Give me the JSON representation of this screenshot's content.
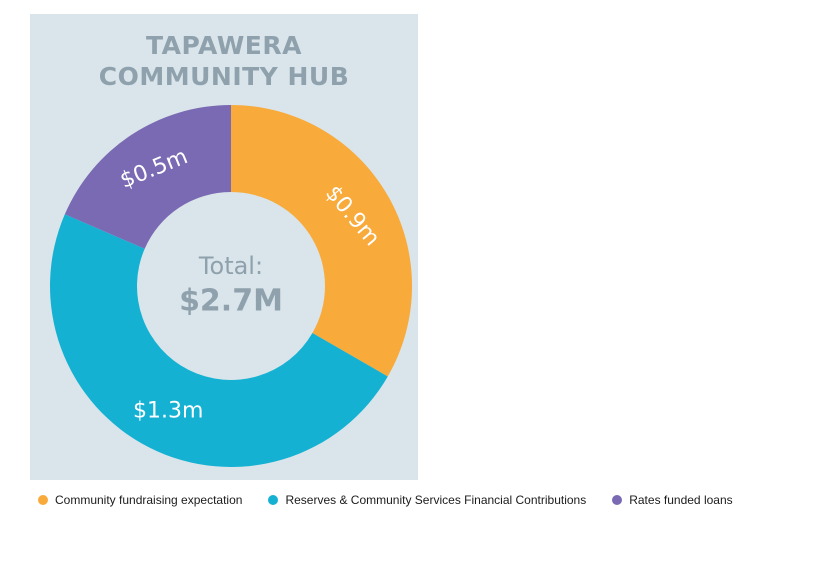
{
  "chart_data": {
    "type": "pie",
    "title_lines": [
      "TAPAWERA",
      "COMMUNITY HUB"
    ],
    "center_label": "Total:",
    "center_value": "$2.7M",
    "series": [
      {
        "name": "Community fundraising expectation",
        "value": 0.9,
        "label": "$0.9m",
        "color": "#f8aa3a"
      },
      {
        "name": "Reserves & Community Services Financial Contributions",
        "value": 1.3,
        "label": "$1.3m",
        "color": "#15b1d3"
      },
      {
        "name": "Rates funded loans",
        "value": 0.5,
        "label": "$0.5m",
        "color": "#7a6ab3"
      }
    ],
    "legend_position": "bottom",
    "panel_color": "#d9e5ea"
  }
}
